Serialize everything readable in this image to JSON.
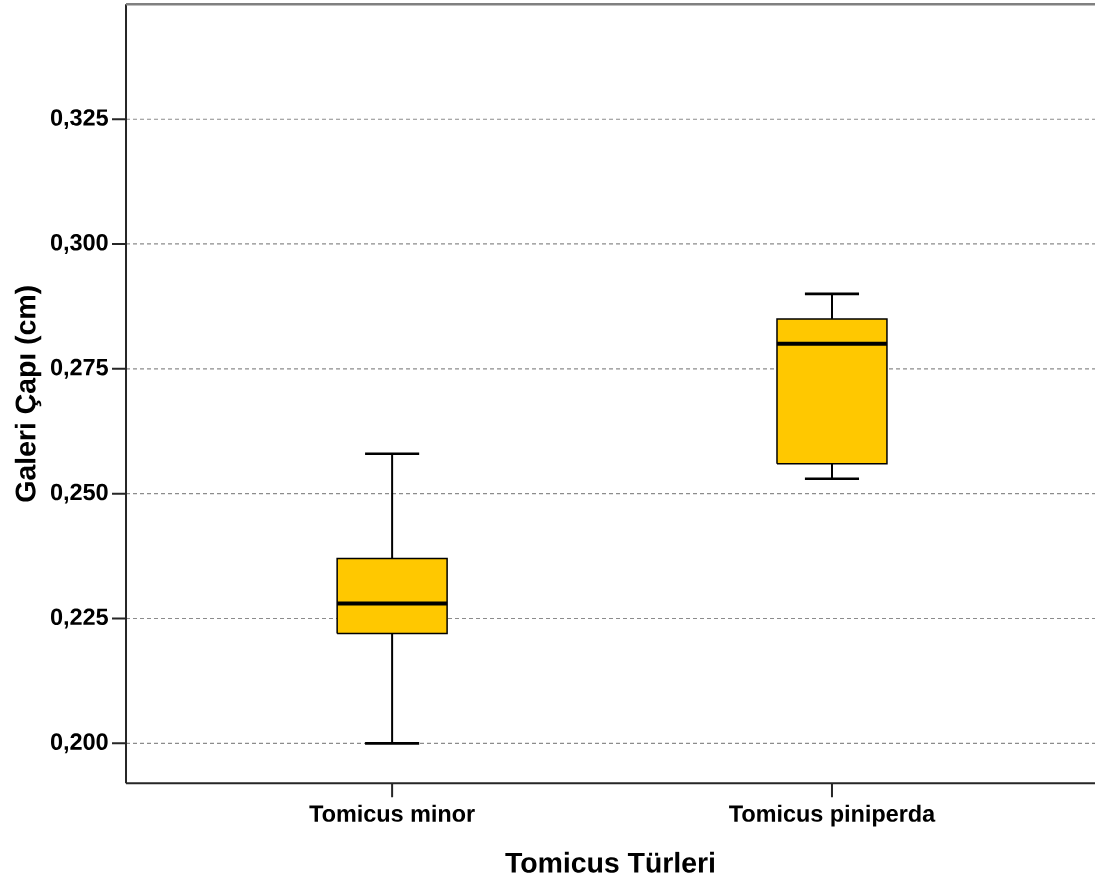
{
  "chart_data": {
    "type": "box",
    "xlabel": "Tomicus Türleri",
    "ylabel": "Galeri Çapı (cm)",
    "categories": [
      "Tomicus minor",
      "Tomicus piniperda"
    ],
    "color": "#ffc800",
    "boxes": [
      {
        "low": 0.2,
        "q1": 0.222,
        "median": 0.228,
        "q3": 0.237,
        "high": 0.258
      },
      {
        "low": 0.253,
        "q1": 0.256,
        "median": 0.28,
        "q3": 0.285,
        "high": 0.29
      }
    ],
    "ylim": [
      0.192,
      0.348
    ],
    "yticks": [
      {
        "value": 0.2,
        "label": "0,200"
      },
      {
        "value": 0.225,
        "label": "0,225"
      },
      {
        "value": 0.25,
        "label": "0,250"
      },
      {
        "value": 0.275,
        "label": "0,275"
      },
      {
        "value": 0.3,
        "label": "0,300"
      },
      {
        "value": 0.325,
        "label": "0,325"
      }
    ],
    "grid": "y"
  }
}
